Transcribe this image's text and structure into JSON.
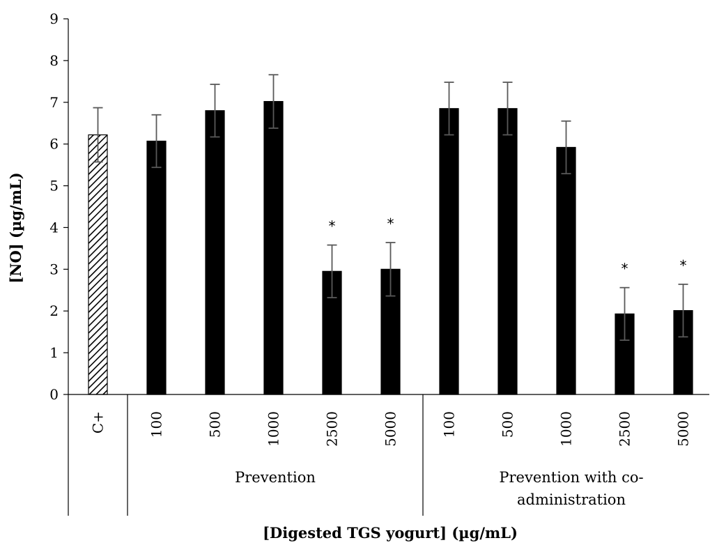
{
  "chart_data": {
    "type": "bar",
    "title": "",
    "xlabel": "[Digested TGS yogurt] (µg/mL)",
    "ylabel": "[NO] (µg/mL)",
    "ylim": [
      0,
      9
    ],
    "yticks": [
      "0",
      "1",
      "2",
      "3",
      "4",
      "5",
      "6",
      "7",
      "8",
      "9"
    ],
    "grid": false,
    "groups": [
      {
        "label": "",
        "categories": [
          "C+"
        ]
      },
      {
        "label": "Prevention",
        "categories": [
          "100",
          "500",
          "1000",
          "2500",
          "5000"
        ]
      },
      {
        "label_lines": [
          "Prevention with co-",
          "administration"
        ],
        "categories": [
          "100",
          "500",
          "1000",
          "2500",
          "5000"
        ]
      }
    ],
    "bars": [
      {
        "group": 0,
        "category": "C+",
        "value": 6.22,
        "error": 0.65,
        "pattern": "hatched",
        "significant": false
      },
      {
        "group": 1,
        "category": "100",
        "value": 6.07,
        "error": 0.63,
        "pattern": "solid",
        "significant": false
      },
      {
        "group": 1,
        "category": "500",
        "value": 6.8,
        "error": 0.63,
        "pattern": "solid",
        "significant": false
      },
      {
        "group": 1,
        "category": "1000",
        "value": 7.02,
        "error": 0.64,
        "pattern": "solid",
        "significant": false
      },
      {
        "group": 1,
        "category": "2500",
        "value": 2.95,
        "error": 0.63,
        "pattern": "solid",
        "significant": true
      },
      {
        "group": 1,
        "category": "5000",
        "value": 3.0,
        "error": 0.64,
        "pattern": "solid",
        "significant": true
      },
      {
        "group": 2,
        "category": "100",
        "value": 6.85,
        "error": 0.63,
        "pattern": "solid",
        "significant": false
      },
      {
        "group": 2,
        "category": "500",
        "value": 6.85,
        "error": 0.63,
        "pattern": "solid",
        "significant": false
      },
      {
        "group": 2,
        "category": "1000",
        "value": 5.92,
        "error": 0.63,
        "pattern": "solid",
        "significant": false
      },
      {
        "group": 2,
        "category": "2500",
        "value": 1.93,
        "error": 0.63,
        "pattern": "solid",
        "significant": true
      },
      {
        "group": 2,
        "category": "5000",
        "value": 2.01,
        "error": 0.63,
        "pattern": "solid",
        "significant": true
      }
    ],
    "significance_marker": "*",
    "colors": {
      "bar": "#000000",
      "errorbar": "#595959",
      "axis": "#000000"
    }
  }
}
